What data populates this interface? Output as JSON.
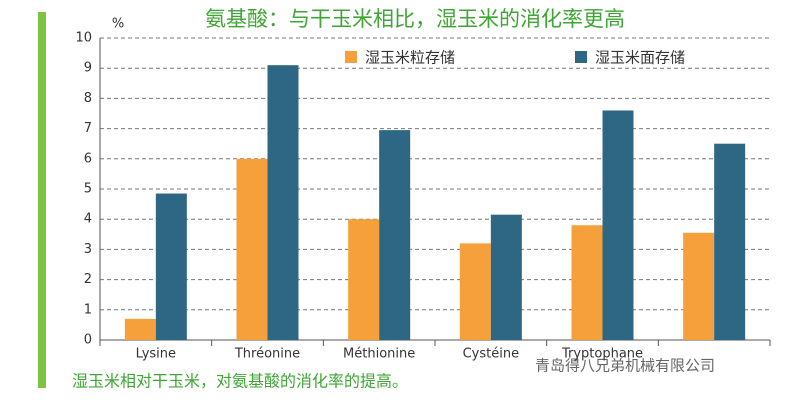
{
  "chart_data": {
    "type": "bar",
    "title": "氨基酸：与干玉米相比，湿玉米的消化率更高",
    "y_label": "%",
    "footer": "湿玉米相对干玉米，对氨基酸的消化率的提高。",
    "watermark": "青岛得八兄弟机械有限公司",
    "categories": [
      "Lysine",
      "Thréonine",
      "Méthionine",
      "Cystéine",
      "Tryptophane",
      null
    ],
    "series": [
      {
        "name": "湿玉米粒存储",
        "color": "#f5a03a",
        "values": [
          0.7,
          6.0,
          4.0,
          3.2,
          3.8,
          3.55
        ]
      },
      {
        "name": "湿玉米面存储",
        "color": "#2e6784",
        "values": [
          4.85,
          9.1,
          6.95,
          4.15,
          7.6,
          6.5
        ]
      }
    ],
    "ylim": [
      0,
      10
    ],
    "yticks": [
      0,
      1,
      2,
      3,
      4,
      5,
      6,
      7,
      8,
      9,
      10
    ],
    "grid": true
  }
}
